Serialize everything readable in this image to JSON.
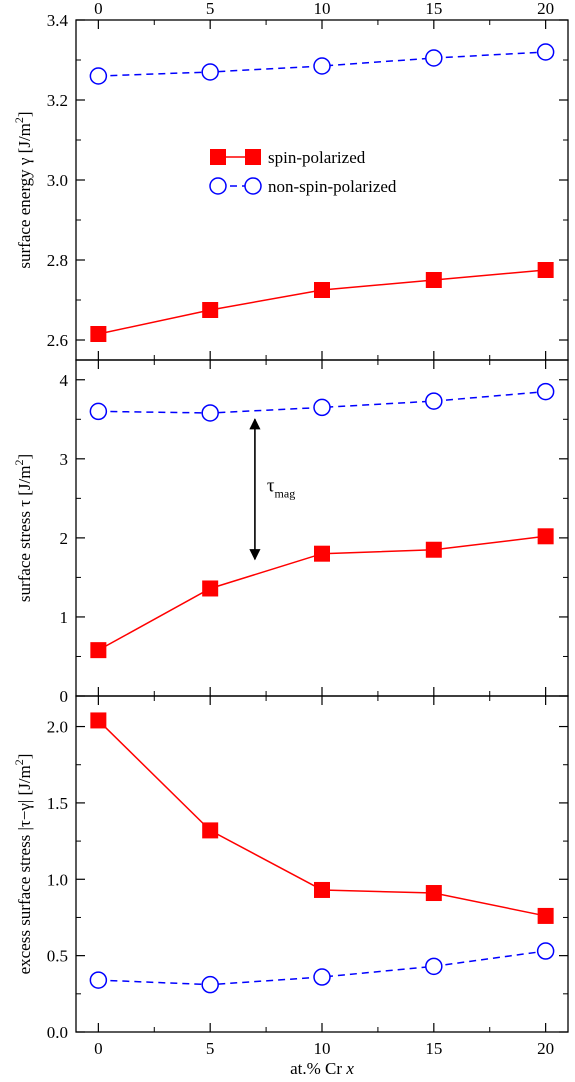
{
  "chart_data": [
    {
      "type": "line",
      "xlim": [
        -1,
        21
      ],
      "ylim": [
        2.55,
        3.4
      ],
      "yticks": [
        2.6,
        2.8,
        3.0,
        3.2,
        3.4
      ],
      "ytick_labels": [
        "2.6",
        "2.8",
        "3.0",
        "3.2",
        "3.4"
      ],
      "xticks": [
        0,
        5,
        10,
        15,
        20
      ],
      "top_xtick_labels": [
        "0",
        "5",
        "10",
        "15",
        "20"
      ],
      "ylabel": "surface energy γ [J/m²]",
      "series": [
        {
          "name": "spin-polarized",
          "x": [
            0,
            5,
            10,
            15,
            20
          ],
          "values": [
            2.615,
            2.675,
            2.725,
            2.75,
            2.775
          ],
          "color": "#ff0000",
          "marker": "filled-square",
          "linestyle": "solid"
        },
        {
          "name": "non-spin-polarized",
          "x": [
            0,
            5,
            10,
            15,
            20
          ],
          "values": [
            3.26,
            3.27,
            3.285,
            3.305,
            3.32
          ],
          "color": "#0000ff",
          "marker": "open-circle",
          "linestyle": "dashed"
        }
      ],
      "legend": {
        "placement": "center"
      }
    },
    {
      "type": "line",
      "xlim": [
        -1,
        21
      ],
      "ylim": [
        0,
        4.25
      ],
      "yticks": [
        0,
        1,
        2,
        3,
        4
      ],
      "ytick_labels": [
        "0",
        "1",
        "2",
        "3",
        "4"
      ],
      "xticks": [
        0,
        5,
        10,
        15,
        20
      ],
      "ylabel": "surface stress τ [J/m²]",
      "series": [
        {
          "name": "spin-polarized",
          "x": [
            0,
            5,
            10,
            15,
            20
          ],
          "values": [
            0.58,
            1.36,
            1.8,
            1.85,
            2.02
          ],
          "color": "#ff0000",
          "marker": "filled-square",
          "linestyle": "solid"
        },
        {
          "name": "non-spin-polarized",
          "x": [
            0,
            5,
            10,
            15,
            20
          ],
          "values": [
            3.6,
            3.58,
            3.65,
            3.73,
            3.85
          ],
          "color": "#0000ff",
          "marker": "open-circle",
          "linestyle": "dashed"
        }
      ],
      "annotation": {
        "label": "τ",
        "subscript": "mag",
        "x": 7,
        "y_from": 3.5,
        "y_to": 1.73
      }
    },
    {
      "type": "line",
      "xlim": [
        -1,
        21
      ],
      "ylim": [
        0,
        2.2
      ],
      "yticks": [
        0.0,
        0.5,
        1.0,
        1.5,
        2.0
      ],
      "ytick_labels": [
        "0.0",
        "0.5",
        "1.0",
        "1.5",
        "2.0"
      ],
      "xticks": [
        0,
        5,
        10,
        15,
        20
      ],
      "xtick_labels": [
        "0",
        "5",
        "10",
        "15",
        "20"
      ],
      "xlabel": "at.% Cr x",
      "ylabel": "excess surface stress |τ−γ| [J/m²]",
      "series": [
        {
          "name": "spin-polarized",
          "x": [
            0,
            5,
            10,
            15,
            20
          ],
          "values": [
            2.04,
            1.32,
            0.93,
            0.91,
            0.76
          ],
          "color": "#ff0000",
          "marker": "filled-square",
          "linestyle": "solid"
        },
        {
          "name": "non-spin-polarized",
          "x": [
            0,
            5,
            10,
            15,
            20
          ],
          "values": [
            0.34,
            0.31,
            0.36,
            0.43,
            0.53
          ],
          "color": "#0000ff",
          "marker": "open-circle",
          "linestyle": "dashed"
        }
      ]
    }
  ],
  "text": {
    "legend_spin": "spin-polarized",
    "legend_nonspin": "non-spin-polarized",
    "ylabel_top_main": "surface energy γ [J/m",
    "ylabel_top_sup": "2",
    "ylabel_top_end": "]",
    "ylabel_mid_main": "surface stress τ [J/m",
    "ylabel_mid_sup": "2",
    "ylabel_mid_end": "]",
    "ylabel_bot_main": "excess surface stress |τ−γ| [J/m",
    "ylabel_bot_sup": "2",
    "ylabel_bot_end": "]",
    "xlabel_main": "at.% Cr ",
    "xlabel_var": "x",
    "tau_symbol": "τ",
    "tau_sub": "mag"
  }
}
